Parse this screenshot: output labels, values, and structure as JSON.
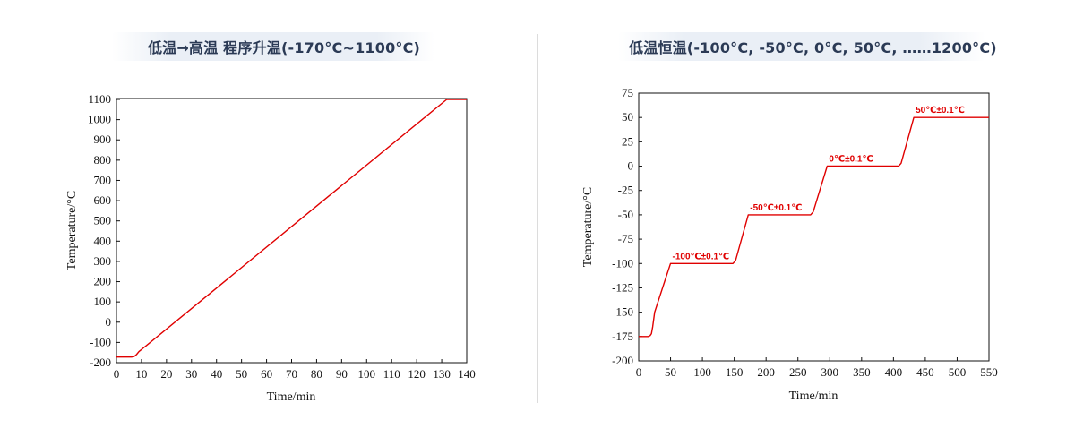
{
  "chart_data": [
    {
      "type": "line",
      "title": "低温→高温 程序升温(-170°C~1100°C)",
      "xlabel": "Time/min",
      "ylabel": "Temperature/°C",
      "xlim": [
        0,
        140
      ],
      "ylim": [
        -200,
        1150
      ],
      "xticks": [
        0,
        10,
        20,
        30,
        40,
        50,
        60,
        70,
        80,
        90,
        100,
        110,
        120,
        130,
        140
      ],
      "yticks": [
        -200,
        -100,
        0,
        100,
        200,
        300,
        400,
        500,
        600,
        700,
        800,
        900,
        1000,
        1100
      ],
      "grid": false,
      "series": [
        {
          "color": "#e00000",
          "x": [
            0,
            6,
            7,
            8,
            9,
            10,
            11,
            12,
            132,
            140
          ],
          "y": [
            -172,
            -172,
            -170,
            -160,
            -145,
            -135,
            -125,
            -115,
            1100,
            1100
          ]
        }
      ]
    },
    {
      "type": "line",
      "title": "低温恒温(-100°C, -50°C, 0°C, 50°C, ……1200°C)",
      "xlabel": "Time/min",
      "ylabel": "Temperature/°C",
      "xlim": [
        0,
        550
      ],
      "ylim": [
        -200,
        75
      ],
      "xticks": [
        0,
        50,
        100,
        150,
        200,
        250,
        300,
        350,
        400,
        450,
        500,
        550
      ],
      "yticks": [
        -200,
        -175,
        -150,
        -125,
        -100,
        -75,
        -50,
        -25,
        0,
        25,
        50,
        75
      ],
      "grid": false,
      "annotations": [
        {
          "text": "-100℃±0.1℃",
          "x": 50,
          "y": -100
        },
        {
          "text": "-50℃±0.1℃",
          "x": 172,
          "y": -50
        },
        {
          "text": "0℃±0.1℃",
          "x": 296,
          "y": 0
        },
        {
          "text": "50℃±0.1℃",
          "x": 432,
          "y": 50
        }
      ],
      "series": [
        {
          "color": "#e00000",
          "x": [
            0,
            15,
            18,
            20,
            22,
            25,
            30,
            40,
            50,
            148,
            152,
            172,
            270,
            274,
            296,
            408,
            412,
            432,
            550
          ],
          "y": [
            -175,
            -175,
            -174,
            -172,
            -165,
            -150,
            -140,
            -120,
            -100,
            -100,
            -97,
            -50,
            -50,
            -47,
            0,
            0,
            3,
            50,
            50
          ]
        }
      ]
    }
  ]
}
